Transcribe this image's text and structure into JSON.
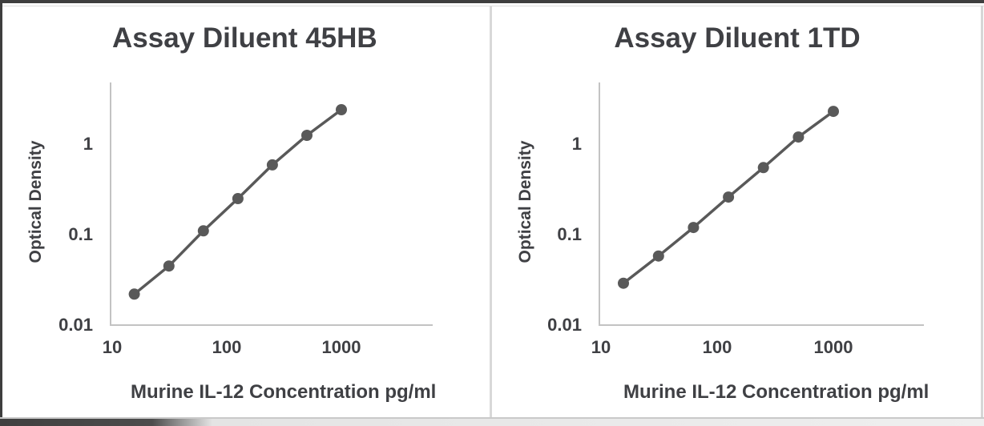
{
  "figure": {
    "panel_count": 2,
    "background": "#ffffff"
  },
  "colors": {
    "text": "#3f4044",
    "curve": "#595959",
    "marker": "#595959",
    "axis_line": "#c3c3c3",
    "frame_dark": "#3e3e3e",
    "frame_light": "#d6d6d6"
  },
  "chart_data": [
    {
      "type": "line",
      "title": "Assay Diluent 45HB",
      "xlabel": "Murine IL-12 Concentration pg/ml",
      "ylabel": "Optical Density",
      "x_scale": "log",
      "y_scale": "log",
      "x": [
        15.6,
        31.25,
        62.5,
        125,
        250,
        500,
        1000
      ],
      "y": [
        0.022,
        0.045,
        0.11,
        0.25,
        0.59,
        1.25,
        2.4
      ],
      "xlim": [
        10,
        6000
      ],
      "ylim": [
        0.01,
        5
      ],
      "x_ticks": [
        10,
        100,
        1000
      ],
      "y_ticks": [
        1,
        0.1,
        0.01
      ],
      "x_tick_labels": [
        "10",
        "100",
        "1000"
      ],
      "y_tick_labels": [
        "1",
        "0.1",
        "0.01"
      ],
      "grid": false,
      "legend": false,
      "marker": "circle"
    },
    {
      "type": "line",
      "title": "Assay Diluent 1TD",
      "xlabel": "Murine IL-12 Concentration pg/ml",
      "ylabel": "Optical Density",
      "x_scale": "log",
      "y_scale": "log",
      "x": [
        15.6,
        31.25,
        62.5,
        125,
        250,
        500,
        1000
      ],
      "y": [
        0.029,
        0.058,
        0.12,
        0.26,
        0.55,
        1.2,
        2.3
      ],
      "xlim": [
        10,
        6000
      ],
      "ylim": [
        0.01,
        5
      ],
      "x_ticks": [
        10,
        100,
        1000
      ],
      "y_ticks": [
        1,
        0.1,
        0.01
      ],
      "x_tick_labels": [
        "10",
        "100",
        "1000"
      ],
      "y_tick_labels": [
        "1",
        "0.1",
        "0.01"
      ],
      "grid": false,
      "legend": false,
      "marker": "circle"
    }
  ]
}
